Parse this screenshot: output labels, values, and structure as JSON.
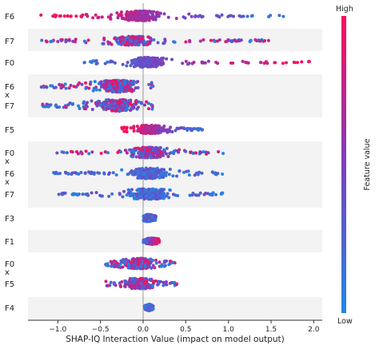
{
  "chart_data": {
    "type": "scatter",
    "subtype": "beeswarm",
    "xlabel": "SHAP-IQ Interaction Value (impact on model output)",
    "xlim": [
      -1.35,
      2.1
    ],
    "xticks": [
      "−1.0",
      "−0.5",
      "0.0",
      "0.5",
      "1.0",
      "1.5",
      "2.0"
    ],
    "xtick_values": [
      -1.0,
      -0.5,
      0.0,
      0.5,
      1.0,
      1.5,
      2.0
    ],
    "colorbar": {
      "label": "Feature value",
      "high": "High",
      "low": "Low",
      "low_color": "#1E88E5",
      "high_color": "#FF0D57"
    },
    "alternate_band_color": "#f3f3f3",
    "rows": [
      {
        "id": "r1",
        "label_lines": [
          "F6"
        ],
        "range": [
          -1.2,
          1.65
        ],
        "core": [
          -0.3,
          0.25
        ],
        "spread": 0.55,
        "color_trend": "low-right"
      },
      {
        "id": "r2",
        "label_lines": [
          "F7"
        ],
        "range": [
          -1.2,
          1.5
        ],
        "core": [
          -0.4,
          0.15
        ],
        "spread": 0.5,
        "color_trend": "mixed"
      },
      {
        "id": "r3",
        "label_lines": [
          "F0"
        ],
        "range": [
          -0.7,
          1.95
        ],
        "core": [
          -0.2,
          0.3
        ],
        "spread": 0.55,
        "color_trend": "high-right"
      },
      {
        "id": "r4a",
        "label_lines": [
          "F6",
          "x"
        ],
        "range": [
          -1.2,
          0.15
        ],
        "core": [
          -0.6,
          0.0
        ],
        "spread": 0.7,
        "color_trend": "mixed"
      },
      {
        "id": "r4b",
        "label_lines": [
          "F7"
        ],
        "range": [
          -1.2,
          0.15
        ],
        "core": [
          -0.6,
          0.0
        ],
        "spread": 0.7,
        "color_trend": "mixed"
      },
      {
        "id": "r5",
        "label_lines": [
          "F5"
        ],
        "range": [
          -0.25,
          0.7
        ],
        "core": [
          -0.1,
          0.25
        ],
        "spread": 0.45,
        "color_trend": "low-right"
      },
      {
        "id": "r6a",
        "label_lines": [
          "F0",
          "x"
        ],
        "range": [
          -1.05,
          0.95
        ],
        "core": [
          -0.2,
          0.35
        ],
        "spread": 0.6,
        "color_trend": "mixed"
      },
      {
        "id": "r6b",
        "label_lines": [
          "F6",
          "x"
        ],
        "range": [
          -1.05,
          0.95
        ],
        "core": [
          -0.2,
          0.35
        ],
        "spread": 0.6,
        "color_trend": "low"
      },
      {
        "id": "r6c",
        "label_lines": [
          "F7"
        ],
        "range": [
          -1.05,
          0.95
        ],
        "core": [
          -0.2,
          0.35
        ],
        "spread": 0.6,
        "color_trend": "low"
      },
      {
        "id": "r7",
        "label_lines": [
          "F3"
        ],
        "range": [
          0.0,
          0.15
        ],
        "core": [
          0.0,
          0.12
        ],
        "spread": 0.35,
        "color_trend": "low"
      },
      {
        "id": "r8",
        "label_lines": [
          "F1"
        ],
        "range": [
          0.0,
          0.2
        ],
        "core": [
          0.02,
          0.18
        ],
        "spread": 0.3,
        "color_trend": "high-right"
      },
      {
        "id": "r9a",
        "label_lines": [
          "F0",
          "x"
        ],
        "range": [
          -0.45,
          0.4
        ],
        "core": [
          -0.25,
          0.15
        ],
        "spread": 0.6,
        "color_trend": "mixed"
      },
      {
        "id": "r9b",
        "label_lines": [
          "F5"
        ],
        "range": [
          -0.45,
          0.4
        ],
        "core": [
          -0.25,
          0.15
        ],
        "spread": 0.6,
        "color_trend": "mixed"
      },
      {
        "id": "r10",
        "label_lines": [
          "F4"
        ],
        "range": [
          0.02,
          0.12
        ],
        "core": [
          0.04,
          0.1
        ],
        "spread": 0.3,
        "color_trend": "low"
      }
    ]
  }
}
